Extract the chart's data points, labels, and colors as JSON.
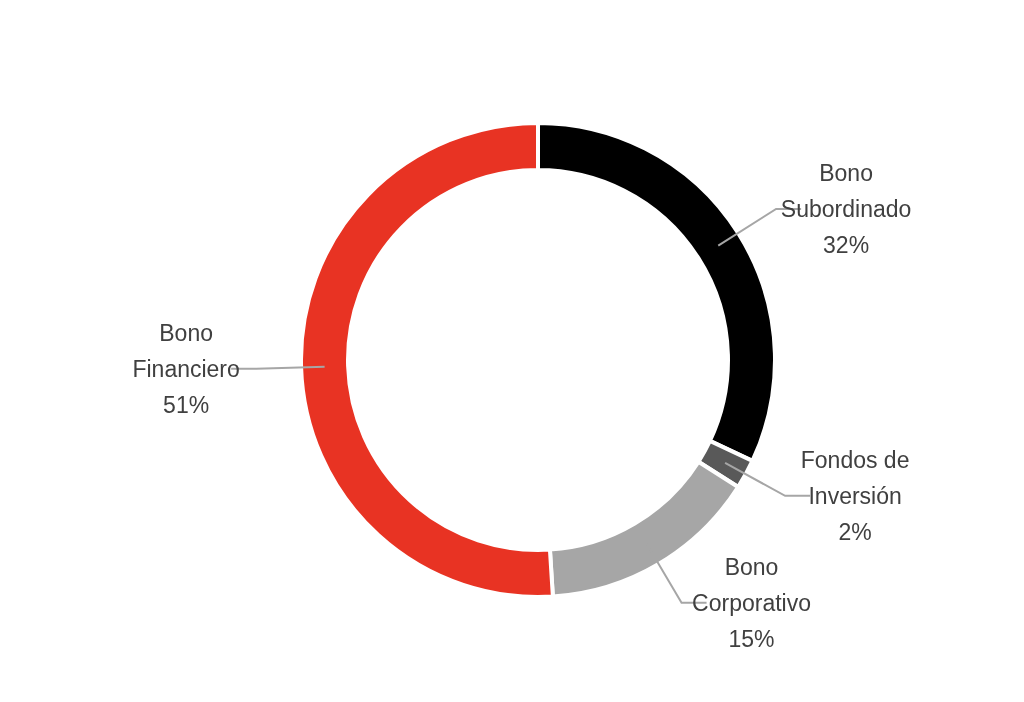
{
  "chart_data": {
    "type": "donut",
    "categories": [
      "Bono Subordinado",
      "Fondos de Inversión",
      "Bono Corporativo",
      "Bono Financiero"
    ],
    "values": [
      32,
      2,
      15,
      51
    ],
    "colors": [
      "#000000",
      "#595959",
      "#a6a6a6",
      "#e83323"
    ],
    "value_labels": [
      "32%",
      "2%",
      "15%",
      "51%"
    ]
  }
}
